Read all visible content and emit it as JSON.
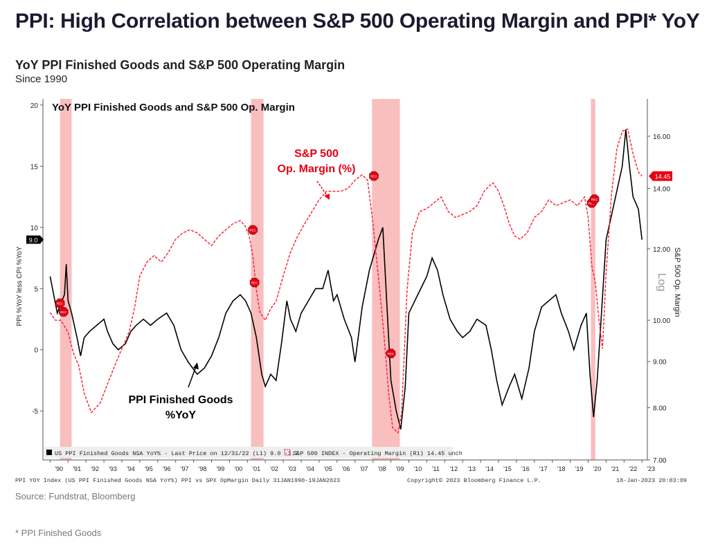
{
  "header": {
    "title": "PPI: High Correlation between S&P 500 Operating Margin and PPI* YoY",
    "chart_title": "YoY PPI Finished Goods and S&P 500 Operating Margin",
    "chart_subtitle": "Since 1990"
  },
  "footer": {
    "source": "Source: Fundstrat, Bloomberg",
    "footnote": "* PPI Finished Goods",
    "bbg_left": "PPI YOY Index (US PPI Finished Goods NSA YoY%) PPI vs SPX OpMargin  Daily 31JAN1990-19JAN2023",
    "bbg_mid": "Copyright© 2023 Bloomberg Finance L.P.",
    "bbg_right": "18-Jan-2023 20:03:09"
  },
  "colors": {
    "ppi": "#000000",
    "margin": "#ff1a33",
    "recession": "#f7a8a8",
    "rec_marker": "#e60012"
  },
  "chart_data": {
    "type": "line",
    "inner_title": "YoY PPI Finished Goods and S&P 500 Op. Margin",
    "left_axis": {
      "label": "PPI %YoY less CPI %YoY",
      "ticks": [
        -5,
        0,
        5,
        10,
        15,
        20
      ],
      "range": [
        -9,
        20.5
      ]
    },
    "right_axis": {
      "label": "S&P 500 Op. Margin",
      "scale_label": "Log",
      "scale": "log",
      "ticks": [
        7,
        8,
        9,
        10,
        12,
        14,
        16
      ],
      "tick_labels": [
        "7.00",
        "8.00",
        "9.00",
        "10.00",
        "12.00",
        "14.00",
        "16.00"
      ],
      "range": [
        7.0,
        17.6
      ]
    },
    "x_axis": {
      "range": [
        1989.6,
        2023.3
      ],
      "ticks": [
        1990,
        1991,
        1992,
        1993,
        1994,
        1995,
        1996,
        1997,
        1998,
        1999,
        2000,
        2001,
        2002,
        2003,
        2004,
        2005,
        2006,
        2007,
        2008,
        2009,
        2010,
        2011,
        2012,
        2013,
        2014,
        2015,
        2016,
        2017,
        2018,
        2019,
        2020,
        2021,
        2022,
        2023
      ],
      "tick_labels": [
        "'90",
        "'91",
        "'92",
        "'93",
        "'94",
        "'95",
        "'96",
        "'97",
        "'98",
        "'99",
        "'00",
        "'01",
        "'02",
        "'03",
        "'04",
        "'05",
        "'06",
        "'07",
        "'08",
        "'09",
        "'10",
        "'11",
        "'12",
        "'13",
        "'14",
        "'15",
        "'16",
        "'17",
        "'18",
        "'19",
        "'20",
        "'21",
        "'22",
        "'23"
      ]
    },
    "recessions": [
      [
        1990.55,
        1991.2
      ],
      [
        2001.2,
        2001.9
      ],
      [
        2007.95,
        2009.5
      ],
      [
        2020.15,
        2020.4
      ]
    ],
    "series": [
      {
        "name": "US PPI Finished Goods NSA YoY% - Last Price on 12/31/22 (L1) 9.0 -1.7",
        "axis": "left",
        "style": "solid",
        "last_value": "9.0",
        "x": [
          1990.0,
          1990.4,
          1990.8,
          1990.9,
          1991.0,
          1991.2,
          1991.5,
          1991.7,
          1991.9,
          1992.2,
          1992.6,
          1993.0,
          1993.2,
          1993.5,
          1993.8,
          1994.2,
          1994.5,
          1994.8,
          1995.2,
          1995.6,
          1996.0,
          1996.5,
          1996.9,
          1997.3,
          1997.7,
          1998.2,
          1998.6,
          1999.0,
          1999.4,
          1999.8,
          2000.2,
          2000.6,
          2000.9,
          2001.2,
          2001.5,
          2001.8,
          2002.0,
          2002.3,
          2002.6,
          2002.9,
          2003.2,
          2003.4,
          2003.7,
          2004.0,
          2004.4,
          2004.8,
          2005.2,
          2005.5,
          2005.8,
          2006.0,
          2006.4,
          2006.8,
          2007.0,
          2007.4,
          2007.8,
          2008.0,
          2008.3,
          2008.55,
          2008.8,
          2009.0,
          2009.3,
          2009.55,
          2009.8,
          2010.0,
          2010.5,
          2011.0,
          2011.3,
          2011.6,
          2011.9,
          2012.3,
          2012.7,
          2013.0,
          2013.4,
          2013.8,
          2014.3,
          2014.6,
          2014.9,
          2015.2,
          2015.6,
          2015.9,
          2016.3,
          2016.7,
          2017.0,
          2017.4,
          2017.8,
          2018.2,
          2018.5,
          2018.9,
          2019.2,
          2019.6,
          2019.9,
          2020.1,
          2020.3,
          2020.5,
          2020.7,
          2021.0,
          2021.3,
          2021.6,
          2021.9,
          2022.1,
          2022.3,
          2022.5,
          2022.8,
          2023.0
        ],
        "values": [
          6.0,
          3.0,
          4.5,
          7.0,
          4.0,
          3.0,
          1.0,
          -0.5,
          1.0,
          1.5,
          2.0,
          2.5,
          1.5,
          0.5,
          0.0,
          0.5,
          1.5,
          2.0,
          2.5,
          2.0,
          2.5,
          3.0,
          2.0,
          0.0,
          -1.0,
          -2.0,
          -1.5,
          -0.5,
          1.0,
          3.0,
          4.0,
          4.5,
          4.0,
          3.0,
          1.0,
          -2.0,
          -3.0,
          -2.0,
          -2.5,
          0.5,
          4.0,
          2.5,
          1.5,
          3.0,
          4.0,
          5.0,
          5.0,
          6.5,
          4.0,
          4.5,
          2.5,
          1.0,
          -1.0,
          3.5,
          6.5,
          7.5,
          9.0,
          10.0,
          3.0,
          -2.5,
          -5.0,
          -6.5,
          -3.0,
          3.0,
          4.5,
          6.0,
          7.5,
          6.5,
          4.5,
          2.5,
          1.5,
          1.0,
          1.5,
          2.5,
          2.0,
          0.0,
          -2.5,
          -4.5,
          -3.0,
          -2.0,
          -4.0,
          -1.5,
          1.5,
          3.5,
          4.0,
          4.5,
          3.0,
          1.5,
          0.0,
          2.0,
          3.0,
          -2.0,
          -5.5,
          -2.5,
          2.0,
          9.0,
          11.0,
          13.0,
          15.0,
          18.0,
          15.0,
          12.5,
          11.5,
          9.0
        ]
      },
      {
        "name": "S&P 500 INDEX - Operating Margin (R1) 14.45 unch",
        "axis": "right",
        "style": "dashed",
        "last_value": "14.45",
        "x": [
          1990.0,
          1990.3,
          1990.6,
          1991.0,
          1991.3,
          1991.6,
          1991.9,
          1992.3,
          1992.8,
          1993.2,
          1993.6,
          1994.0,
          1994.4,
          1994.7,
          1995.0,
          1995.4,
          1995.8,
          1996.2,
          1996.6,
          1997.0,
          1997.4,
          1997.8,
          1998.2,
          1998.6,
          1999.0,
          1999.4,
          1999.8,
          2000.2,
          2000.6,
          2000.9,
          2001.1,
          2001.3,
          2001.5,
          2001.7,
          2002.0,
          2002.3,
          2002.6,
          2003.0,
          2003.4,
          2003.8,
          2004.2,
          2004.6,
          2005.0,
          2005.4,
          2005.8,
          2006.2,
          2006.6,
          2007.0,
          2007.4,
          2007.7,
          2008.0,
          2008.3,
          2008.6,
          2008.9,
          2009.1,
          2009.4,
          2009.6,
          2009.9,
          2010.2,
          2010.6,
          2011.0,
          2011.4,
          2011.8,
          2012.2,
          2012.6,
          2013.0,
          2013.4,
          2013.8,
          2014.2,
          2014.5,
          2014.7,
          2015.0,
          2015.3,
          2015.6,
          2015.9,
          2016.2,
          2016.6,
          2017.0,
          2017.4,
          2017.8,
          2018.2,
          2018.6,
          2019.0,
          2019.4,
          2019.8,
          2020.0,
          2020.2,
          2020.4,
          2020.6,
          2020.8,
          2021.0,
          2021.3,
          2021.6,
          2021.9,
          2022.2,
          2022.5,
          2022.8,
          2023.0
        ],
        "values": [
          10.2,
          10.0,
          10.0,
          9.7,
          9.2,
          8.9,
          8.3,
          7.9,
          8.1,
          8.5,
          8.9,
          9.3,
          9.7,
          10.3,
          11.2,
          11.6,
          11.8,
          11.6,
          11.9,
          12.3,
          12.5,
          12.6,
          12.5,
          12.3,
          12.1,
          12.4,
          12.6,
          12.8,
          12.9,
          12.7,
          12.4,
          11.8,
          10.8,
          10.2,
          10.0,
          10.3,
          10.5,
          11.2,
          11.9,
          12.4,
          12.8,
          13.2,
          13.6,
          13.9,
          13.9,
          13.9,
          14.0,
          14.3,
          14.5,
          14.3,
          12.8,
          11.2,
          9.7,
          8.2,
          7.6,
          7.5,
          7.9,
          10.8,
          12.5,
          13.2,
          13.3,
          13.5,
          13.7,
          13.2,
          13.0,
          13.1,
          13.2,
          13.4,
          13.9,
          14.1,
          14.2,
          13.9,
          13.4,
          12.8,
          12.4,
          12.3,
          12.5,
          13.0,
          13.2,
          13.6,
          13.4,
          13.5,
          13.6,
          13.4,
          13.7,
          13.0,
          11.5,
          11.0,
          10.0,
          9.3,
          11.3,
          13.8,
          15.5,
          16.2,
          16.3,
          15.3,
          14.6,
          14.45
        ]
      }
    ],
    "annotations": [
      {
        "text_lines": [
          "S&P 500",
          "Op. Margin (%)"
        ],
        "color": "#e60012",
        "x": 2005.0,
        "y": 16.0
      },
      {
        "text_lines": [
          "PPI Finished Goods",
          "%YoY"
        ],
        "color": "#000000",
        "x": 1998.5,
        "y": -4.8
      }
    ],
    "recession_markers": [
      {
        "x": 1990.55,
        "y": 3.8,
        "label": "REC"
      },
      {
        "x": 1990.75,
        "y": 3.1,
        "label": "REC"
      },
      {
        "x": 2001.3,
        "y": 9.8,
        "label": "REC"
      },
      {
        "x": 2001.4,
        "y": 5.5,
        "label": "REC"
      },
      {
        "x": 2008.05,
        "y": 14.2,
        "label": "REC"
      },
      {
        "x": 2009.0,
        "y": -0.3,
        "label": "REC"
      },
      {
        "x": 2020.2,
        "y": 12.0,
        "label": "REC"
      },
      {
        "x": 2020.35,
        "y": 12.3,
        "label": "REC"
      }
    ]
  }
}
